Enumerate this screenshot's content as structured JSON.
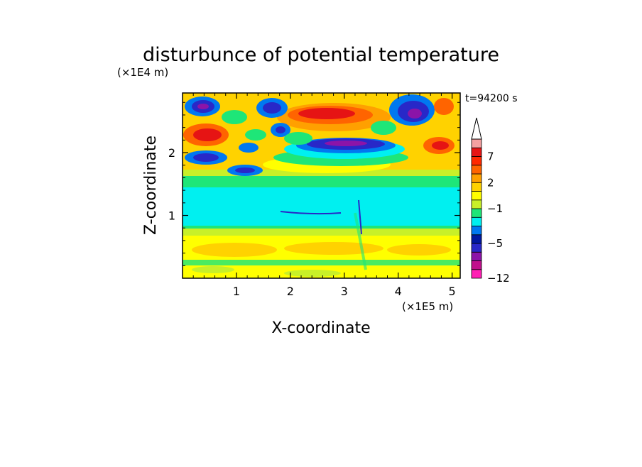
{
  "chart_data": {
    "type": "heatmap",
    "title": "disturbunce of potential temperature",
    "xlabel": "X-coordinate",
    "ylabel": "Z-coordinate",
    "x_unit": "(×1E5 m)",
    "y_unit": "(×1E4 m)",
    "time_label": "t=94200 s",
    "xlim": [
      0,
      5.15
    ],
    "ylim": [
      0,
      2.95
    ],
    "x_ticks": [
      1,
      2,
      3,
      4,
      5
    ],
    "y_ticks": [
      1,
      2
    ],
    "colorbar": {
      "levels": [
        -12,
        -10,
        -8,
        -6,
        -5,
        -4,
        -3,
        -2,
        -1,
        0,
        1,
        2,
        3,
        5,
        7,
        9,
        11
      ],
      "colors": [
        "#ff1fb4",
        "#c0108c",
        "#8c14a8",
        "#2828c8",
        "#0018a0",
        "#0078f0",
        "#00f0f0",
        "#1ee678",
        "#c8f028",
        "#ffff00",
        "#ffd200",
        "#ffa000",
        "#ff6400",
        "#ff2800",
        "#e61414",
        "#f4a0a0"
      ],
      "labeled_levels": [
        7,
        2,
        -1,
        -5,
        -12
      ],
      "extend": "max"
    },
    "grid": false
  }
}
